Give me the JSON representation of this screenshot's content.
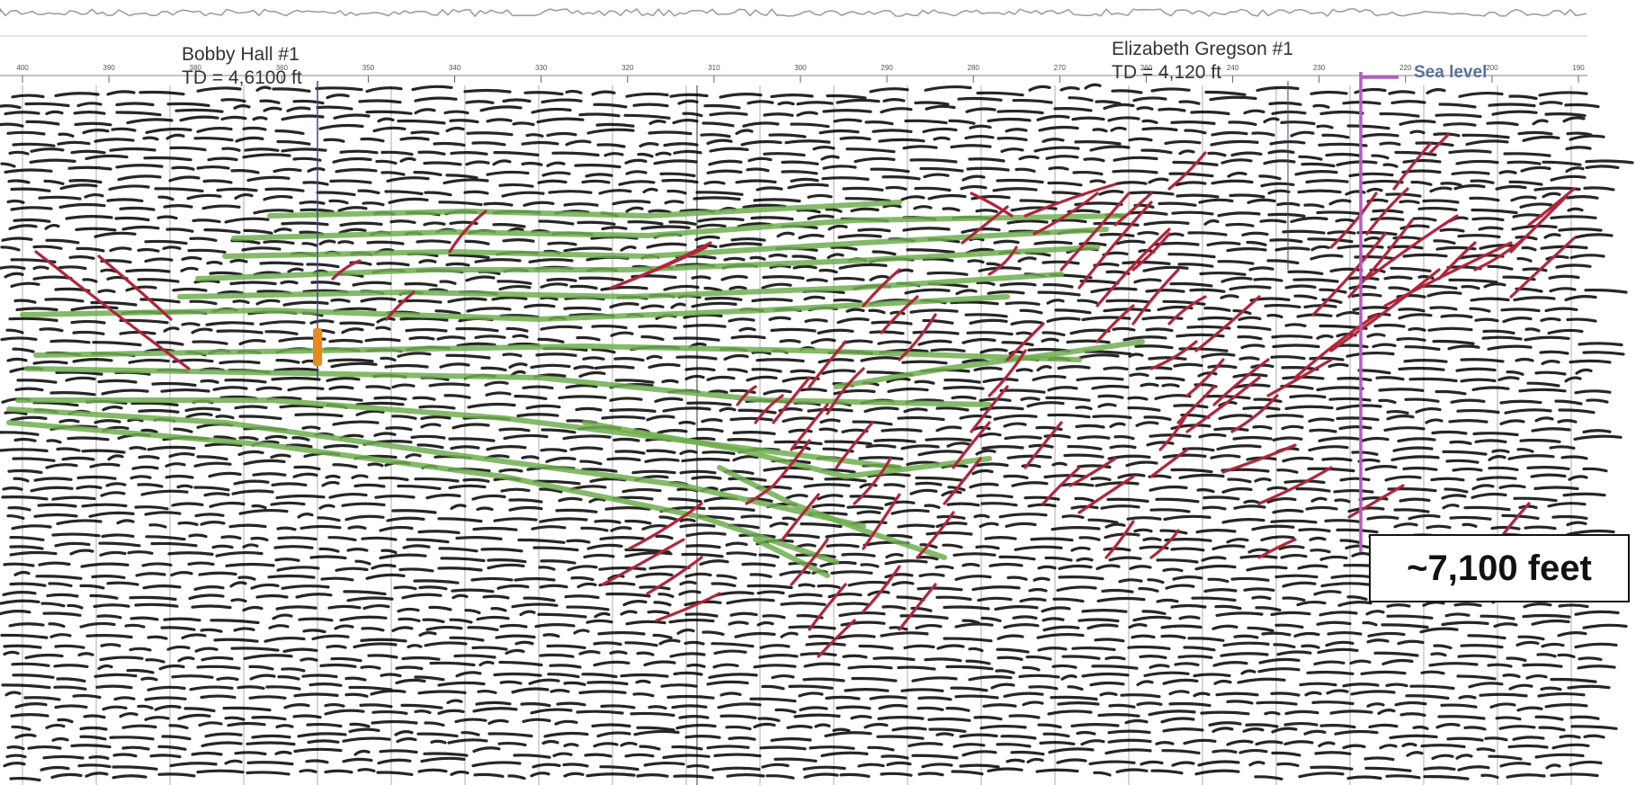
{
  "wells": [
    {
      "name": "Bobby Hall #1",
      "td": "TD = 4,6100 ft"
    },
    {
      "name": "Elizabeth Gregson #1",
      "td": "TD = 4,120 ft"
    }
  ],
  "sea_level_label": "Sea level",
  "depth_callout": "~7,100 feet",
  "trace_axis_labels": [
    "400",
    "390",
    "380",
    "360",
    "350",
    "340",
    "330",
    "320",
    "310",
    "300",
    "290",
    "280",
    "270",
    "260",
    "240",
    "230",
    "220",
    "200",
    "190"
  ],
  "colors": {
    "reflector": "#000000",
    "horizon": "#6fae4f",
    "fault": "#b3243a",
    "sea_level_line": "#b25fbf",
    "well_marker": "#e8891e",
    "well_line": "#3b4a8c"
  }
}
